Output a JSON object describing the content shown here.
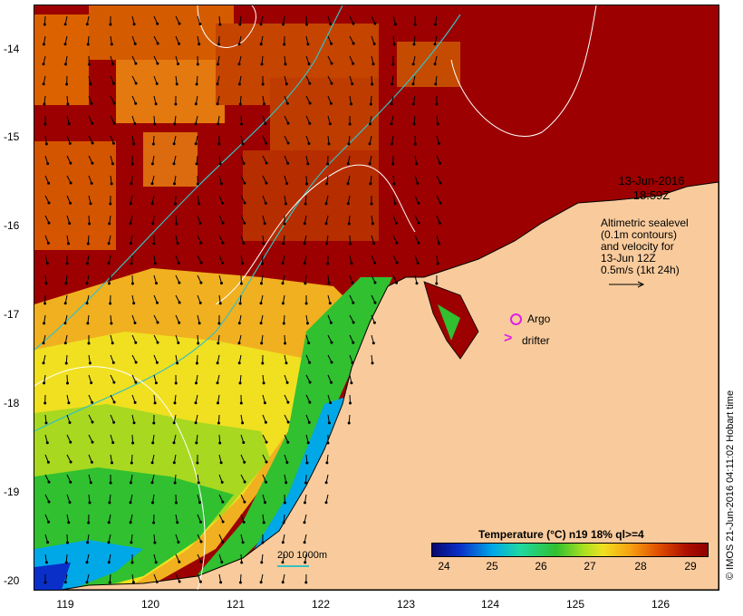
{
  "map": {
    "y_ticks": [
      "-14",
      "-15",
      "-16",
      "-17",
      "-18",
      "-19",
      "-20"
    ],
    "x_ticks": [
      "119",
      "120",
      "121",
      "122",
      "123",
      "124",
      "125",
      "126"
    ],
    "date_line1": "13-Jun-2016",
    "date_line2": "18:59Z",
    "altimetry_note": [
      "Altimetric sealevel",
      "(0.1m contours)",
      "and velocity for",
      "13-Jun 12Z",
      "0.5m/s (1kt 24h)"
    ],
    "argo_label": "Argo",
    "drifter_label": "drifter",
    "depth_legend": "200  1000m",
    "colorbar_title": "Temperature (°C) n19 18% ql>=4",
    "colorbar_ticks": [
      "24",
      "25",
      "26",
      "27",
      "28",
      "29"
    ],
    "credit": "© IMOS 21-Jun-2016 04:11:02 Hobart time",
    "colors": {
      "land": "#f9cb9c",
      "warm": "#9c0000",
      "cool": "#0a2fc8",
      "marker": "#e020e0",
      "isobath": "#38c0c0"
    }
  }
}
